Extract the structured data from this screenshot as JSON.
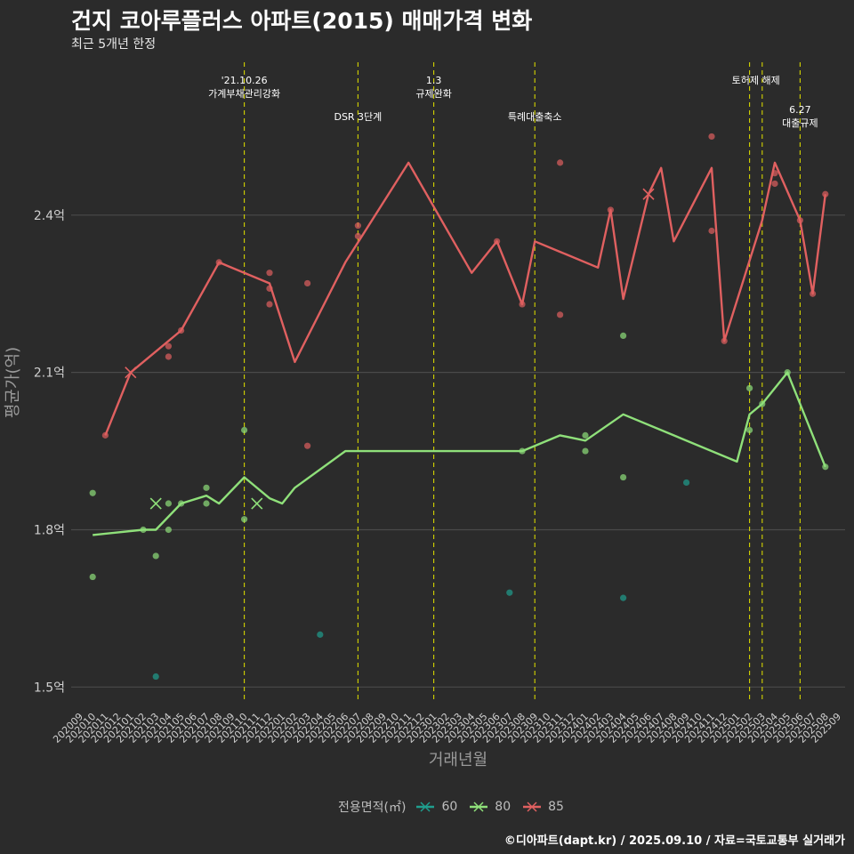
{
  "title": "건지 코아루플러스 아파트(2015) 매매가격 변화",
  "subtitle": "최근 5개년 한정",
  "caption": "©디아파트(dapt.kr) / 2025.09.10 / 자료=국토교통부 실거래가",
  "colors": {
    "background": "#2b2b2b",
    "grid": "#4a4a4a",
    "event_line": "#d4d400",
    "s60": "#1f9e8e",
    "s80": "#8fe07a",
    "s85": "#e06060",
    "text": "#ffffff",
    "axis_text": "#cfcfcf",
    "axis_title": "#9a9a9a"
  },
  "chart_data": {
    "type": "line",
    "x": [
      "202009",
      "202010",
      "202011",
      "202012",
      "202101",
      "202102",
      "202103",
      "202104",
      "202105",
      "202106",
      "202107",
      "202108",
      "202109",
      "202110",
      "202111",
      "202112",
      "202201",
      "202202",
      "202203",
      "202204",
      "202205",
      "202206",
      "202207",
      "202208",
      "202209",
      "202210",
      "202211",
      "202212",
      "202301",
      "202302",
      "202303",
      "202304",
      "202305",
      "202306",
      "202307",
      "202308",
      "202309",
      "202310",
      "202311",
      "202312",
      "202401",
      "202402",
      "202403",
      "202404",
      "202405",
      "202406",
      "202407",
      "202408",
      "202409",
      "202410",
      "202411",
      "202412",
      "202501",
      "202502",
      "202503",
      "202504",
      "202505",
      "202506",
      "202507",
      "202508",
      "202509"
    ],
    "xlabel": "거래년월",
    "ylabel": "평균가(억)",
    "ylim": [
      1.47,
      2.7
    ],
    "yticks": [
      1.5,
      1.8,
      2.1,
      2.4
    ],
    "ytick_labels": [
      "1.5억",
      "1.8억",
      "2.1억",
      "2.4억"
    ],
    "grid": true,
    "legend": {
      "title": "전용면적(㎡)",
      "position": "bottom",
      "items": [
        "60",
        "80",
        "85"
      ]
    },
    "series": [
      {
        "name": "60",
        "line": [],
        "points": [
          [
            "202204",
            1.6
          ],
          [
            "202103",
            1.52
          ],
          [
            "202307",
            1.68
          ],
          [
            "202404",
            1.67
          ],
          [
            "202409",
            1.89
          ]
        ],
        "cross": []
      },
      {
        "name": "80",
        "line": [
          [
            "202010",
            1.79
          ],
          [
            "202102",
            1.8
          ],
          [
            "202103",
            1.8
          ],
          [
            "202105",
            1.85
          ],
          [
            "202107",
            1.865
          ],
          [
            "202108",
            1.85
          ],
          [
            "202110",
            1.9
          ],
          [
            "202112",
            1.86
          ],
          [
            "202201",
            1.85
          ],
          [
            "202202",
            1.88
          ],
          [
            "202206",
            1.95
          ],
          [
            "202308",
            1.95
          ],
          [
            "202311",
            1.98
          ],
          [
            "202401",
            1.97
          ],
          [
            "202404",
            2.02
          ],
          [
            "202501",
            1.93
          ],
          [
            "202502",
            2.02
          ],
          [
            "202503",
            2.04
          ],
          [
            "202505",
            2.1
          ],
          [
            "202508",
            1.92
          ]
        ],
        "points": [
          [
            "202010",
            1.87
          ],
          [
            "202010",
            1.71
          ],
          [
            "202102",
            1.8
          ],
          [
            "202103",
            1.75
          ],
          [
            "202104",
            1.85
          ],
          [
            "202104",
            1.8
          ],
          [
            "202105",
            1.85
          ],
          [
            "202107",
            1.85
          ],
          [
            "202107",
            1.88
          ],
          [
            "202110",
            1.99
          ],
          [
            "202110",
            1.82
          ],
          [
            "202401",
            1.95
          ],
          [
            "202401",
            1.98
          ],
          [
            "202404",
            1.9
          ],
          [
            "202404",
            2.17
          ],
          [
            "202502",
            2.07
          ],
          [
            "202502",
            1.99
          ],
          [
            "202503",
            2.04
          ],
          [
            "202308",
            1.95
          ],
          [
            "202505",
            2.1
          ],
          [
            "202508",
            1.92
          ]
        ],
        "cross": [
          [
            "202103",
            1.85
          ],
          [
            "202111",
            1.85
          ]
        ]
      },
      {
        "name": "85",
        "line": [
          [
            "202011",
            1.98
          ],
          [
            "202101",
            2.1
          ],
          [
            "202104",
            2.16
          ],
          [
            "202105",
            2.18
          ],
          [
            "202108",
            2.31
          ],
          [
            "202112",
            2.27
          ],
          [
            "202202",
            2.12
          ],
          [
            "202206",
            2.31
          ],
          [
            "202211",
            2.5
          ],
          [
            "202304",
            2.29
          ],
          [
            "202306",
            2.35
          ],
          [
            "202308",
            2.23
          ],
          [
            "202309",
            2.35
          ],
          [
            "202311",
            2.33
          ],
          [
            "202402",
            2.3
          ],
          [
            "202403",
            2.41
          ],
          [
            "202404",
            2.24
          ],
          [
            "202406",
            2.44
          ],
          [
            "202407",
            2.49
          ],
          [
            "202408",
            2.35
          ],
          [
            "202411",
            2.49
          ],
          [
            "202412",
            2.16
          ],
          [
            "202503",
            2.39
          ],
          [
            "202504",
            2.5
          ],
          [
            "202506",
            2.39
          ],
          [
            "202507",
            2.25
          ],
          [
            "202508",
            2.44
          ]
        ],
        "points": [
          [
            "202011",
            1.98
          ],
          [
            "202104",
            2.15
          ],
          [
            "202104",
            2.13
          ],
          [
            "202105",
            2.18
          ],
          [
            "202108",
            2.31
          ],
          [
            "202112",
            2.29
          ],
          [
            "202112",
            2.26
          ],
          [
            "202112",
            2.23
          ],
          [
            "202203",
            2.27
          ],
          [
            "202203",
            1.96
          ],
          [
            "202207",
            2.36
          ],
          [
            "202207",
            2.38
          ],
          [
            "202306",
            2.35
          ],
          [
            "202308",
            2.23
          ],
          [
            "202311",
            2.5
          ],
          [
            "202311",
            2.21
          ],
          [
            "202403",
            2.41
          ],
          [
            "202411",
            2.37
          ],
          [
            "202412",
            2.16
          ],
          [
            "202411",
            2.55
          ],
          [
            "202504",
            2.46
          ],
          [
            "202504",
            2.48
          ],
          [
            "202506",
            2.39
          ],
          [
            "202507",
            2.25
          ],
          [
            "202508",
            2.44
          ]
        ],
        "cross": [
          [
            "202101",
            2.1
          ],
          [
            "202406",
            2.44
          ]
        ]
      }
    ],
    "events": [
      {
        "x": "202110",
        "lines": [
          "'21.10.26",
          "가계부채관리강화"
        ],
        "row": 1
      },
      {
        "x": "202207",
        "lines": [
          "DSR 3단계"
        ],
        "row": 2
      },
      {
        "x": "202301",
        "lines": [
          "1.3",
          "규제완화"
        ],
        "row": 1
      },
      {
        "x": "202309",
        "lines": [
          "특례대출축소"
        ],
        "row": 2
      },
      {
        "x": "202502",
        "lines": [
          "토허제 해제"
        ],
        "row": 1,
        "extra_x": "202503"
      },
      {
        "x": "202506",
        "lines": [
          "6.27",
          "대출규제"
        ],
        "row": 3
      }
    ]
  }
}
